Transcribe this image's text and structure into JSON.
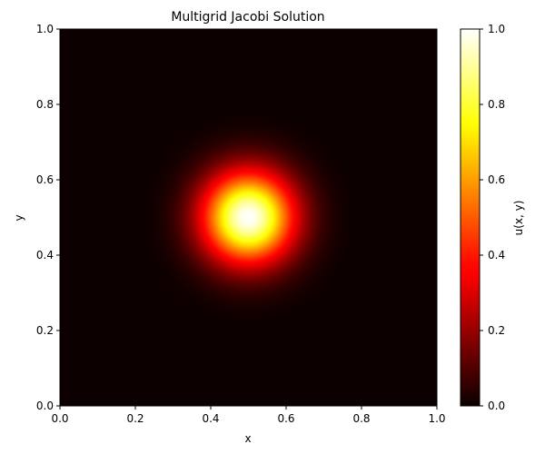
{
  "chart_data": {
    "type": "heatmap",
    "title": "Multigrid Jacobi Solution",
    "xlabel": "x",
    "ylabel": "y",
    "xlim": [
      0.0,
      1.0
    ],
    "ylim": [
      0.0,
      1.0
    ],
    "xticks": [
      "0.0",
      "0.2",
      "0.4",
      "0.6",
      "0.8",
      "1.0"
    ],
    "yticks": [
      "0.0",
      "0.2",
      "0.4",
      "0.6",
      "0.8",
      "1.0"
    ],
    "colormap": "hot",
    "field": {
      "peak_value": 1.0,
      "peak_location": [
        0.5,
        0.5
      ],
      "falloff": "gaussian",
      "sigma": 0.085
    },
    "colorbar": {
      "label": "u(x, y)",
      "range": [
        0.0,
        1.0
      ],
      "ticks": [
        "0.0",
        "0.2",
        "0.4",
        "0.6",
        "0.8",
        "1.0"
      ]
    },
    "grid": false
  }
}
